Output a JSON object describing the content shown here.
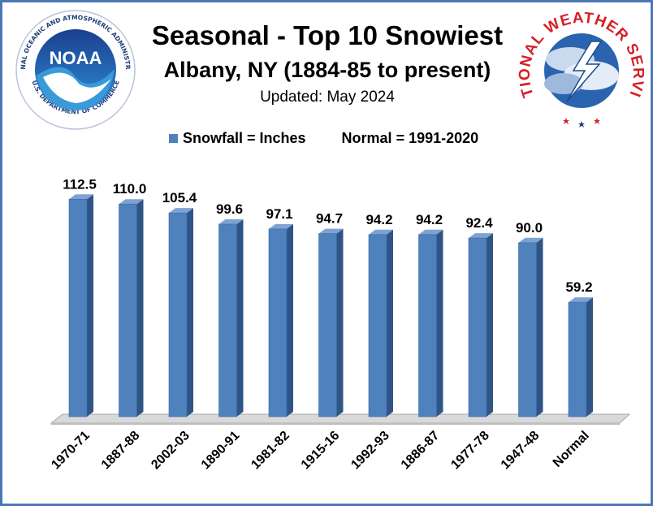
{
  "header": {
    "title_line1": "Seasonal - Top 10 Snowiest",
    "title_line2": "Albany, NY (1884-85 to present)",
    "updated": "Updated: May 2024"
  },
  "legend": {
    "series_label": "Snowfall = Inches",
    "normal_label": "Normal = 1991-2020"
  },
  "logos": {
    "left": {
      "icon": "noaa-logo-icon",
      "ring_text": "NATIONAL OCEANIC AND ATMOSPHERIC ADMINISTRATION",
      "bottom_text": "U.S. DEPARTMENT OF COMMERCE",
      "center_text": "NOAA"
    },
    "right": {
      "icon": "nws-logo-icon",
      "ring_text": "NATIONAL WEATHER SERVICE"
    }
  },
  "colors": {
    "bar_front": "#4f81bd",
    "bar_side": "#2f5586",
    "bar_top": "#7ea3d3",
    "frame_border": "#4a78b5"
  },
  "chart_data": {
    "type": "bar",
    "categories": [
      "1970-71",
      "1887-88",
      "2002-03",
      "1890-91",
      "1981-82",
      "1915-16",
      "1992-93",
      "1886-87",
      "1977-78",
      "1947-48",
      "Normal"
    ],
    "values": [
      112.5,
      110.0,
      105.4,
      99.6,
      97.1,
      94.7,
      94.2,
      94.2,
      92.4,
      90.0,
      59.2
    ],
    "value_labels": [
      "112.5",
      "110.0",
      "105.4",
      "99.6",
      "97.1",
      "94.7",
      "94.2",
      "94.2",
      "92.4",
      "90.0",
      "59.2"
    ],
    "series": [
      {
        "name": "Snowfall = Inches",
        "values": [
          112.5,
          110.0,
          105.4,
          99.6,
          97.1,
          94.7,
          94.2,
          94.2,
          92.4,
          90.0,
          59.2
        ]
      }
    ],
    "title": "Seasonal - Top 10 Snowiest",
    "subtitle": "Albany, NY (1884-85 to present)",
    "xlabel": "",
    "ylabel": "",
    "ylim": [
      0,
      112.5
    ],
    "grid": false,
    "legend_position": "top",
    "style": "3d-column"
  }
}
